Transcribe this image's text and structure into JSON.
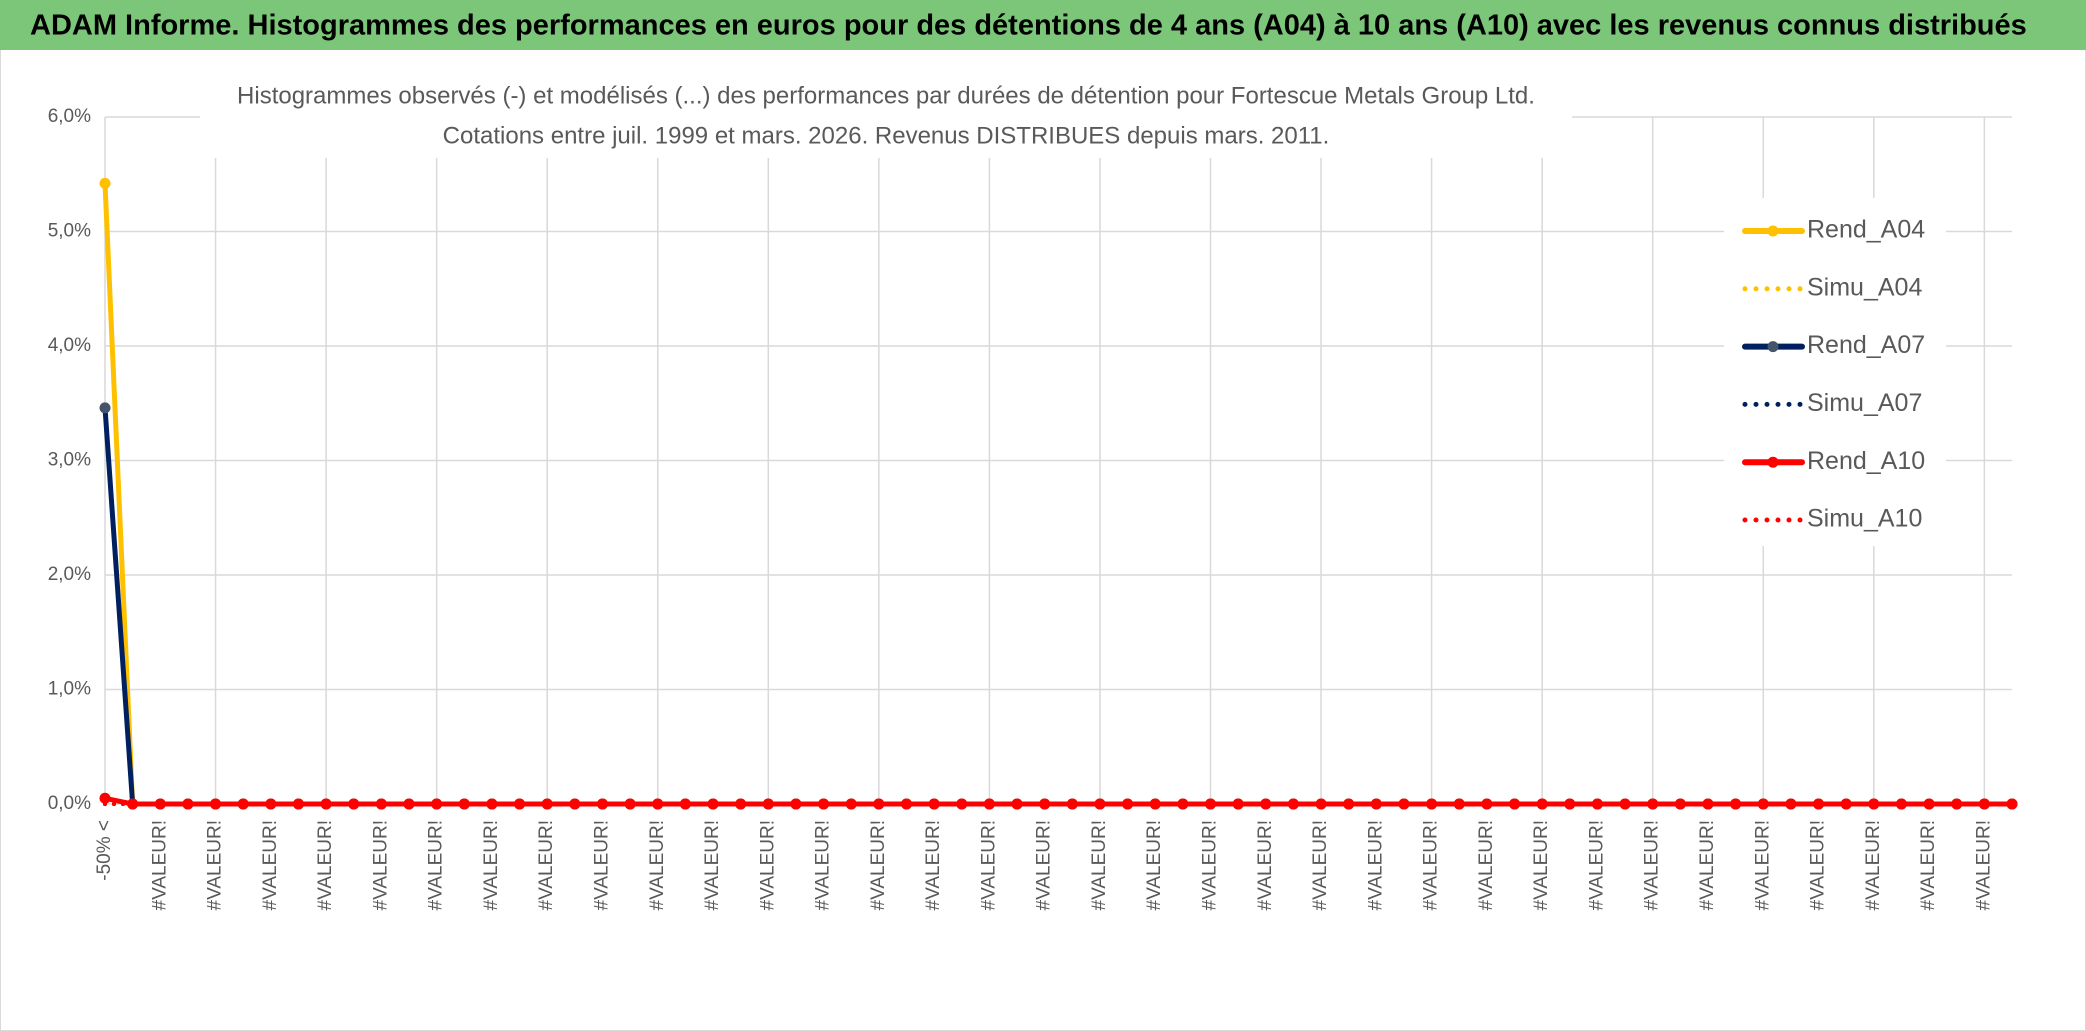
{
  "header": {
    "title": "ADAM Informe. Histogrammes des performances en euros pour des détentions de 4 ans (A04) à 10 ans (A10) avec les revenus connus distribués"
  },
  "chart_data": {
    "type": "line",
    "title": "Histogrammes observés (-) et modélisés (...) des performances par durées de détention pour Fortescue Metals Group Ltd.",
    "subtitle": "Cotations entre juil. 1999 et mars. 2026. Revenus DISTRIBUES depuis mars. 2011.",
    "categories": [
      "-50% <",
      null,
      "#VALEUR!",
      null,
      "#VALEUR!",
      null,
      "#VALEUR!",
      null,
      "#VALEUR!",
      null,
      "#VALEUR!",
      null,
      "#VALEUR!",
      null,
      "#VALEUR!",
      null,
      "#VALEUR!",
      null,
      "#VALEUR!",
      null,
      "#VALEUR!",
      null,
      "#VALEUR!",
      null,
      "#VALEUR!",
      null,
      "#VALEUR!",
      null,
      "#VALEUR!",
      null,
      "#VALEUR!",
      null,
      "#VALEUR!",
      null,
      "#VALEUR!",
      null,
      "#VALEUR!",
      null,
      "#VALEUR!",
      null,
      "#VALEUR!",
      null,
      "#VALEUR!",
      null,
      "#VALEUR!",
      null,
      "#VALEUR!",
      null,
      "#VALEUR!",
      null,
      "#VALEUR!",
      null,
      "#VALEUR!",
      null,
      "#VALEUR!",
      null,
      "#VALEUR!",
      null,
      "#VALEUR!",
      null,
      "#VALEUR!",
      null,
      "#VALEUR!",
      null,
      "#VALEUR!",
      null,
      "#VALEUR!",
      null,
      "#VALEUR!",
      null
    ],
    "series": [
      {
        "name": "Rend_A04",
        "color": "#FFC000",
        "style": "solid",
        "values": [
          5.42,
          0,
          0,
          0,
          0,
          0,
          0,
          0,
          0,
          0,
          0,
          0,
          0,
          0,
          0,
          0,
          0,
          0,
          0,
          0,
          0,
          0,
          0,
          0,
          0,
          0,
          0,
          0,
          0,
          0,
          0,
          0,
          0,
          0,
          0,
          0,
          0,
          0,
          0,
          0,
          0,
          0,
          0,
          0,
          0,
          0,
          0,
          0,
          0,
          0,
          0,
          0,
          0,
          0,
          0,
          0,
          0,
          0,
          0,
          0,
          0,
          0,
          0,
          0,
          0,
          0,
          0,
          0,
          0,
          0
        ]
      },
      {
        "name": "Simu_A04",
        "color": "#FFC000",
        "style": "dotted",
        "values": [
          0,
          0,
          0,
          0,
          0,
          0,
          0,
          0,
          0,
          0,
          0,
          0,
          0,
          0,
          0,
          0,
          0,
          0,
          0,
          0,
          0,
          0,
          0,
          0,
          0,
          0,
          0,
          0,
          0,
          0,
          0,
          0,
          0,
          0,
          0,
          0,
          0,
          0,
          0,
          0,
          0,
          0,
          0,
          0,
          0,
          0,
          0,
          0,
          0,
          0,
          0,
          0,
          0,
          0,
          0,
          0,
          0,
          0,
          0,
          0,
          0,
          0,
          0,
          0,
          0,
          0,
          0,
          0,
          0,
          0
        ]
      },
      {
        "name": "Rend_A07",
        "color": "#002060",
        "style": "solid",
        "values": [
          3.46,
          0,
          0,
          0,
          0,
          0,
          0,
          0,
          0,
          0,
          0,
          0,
          0,
          0,
          0,
          0,
          0,
          0,
          0,
          0,
          0,
          0,
          0,
          0,
          0,
          0,
          0,
          0,
          0,
          0,
          0,
          0,
          0,
          0,
          0,
          0,
          0,
          0,
          0,
          0,
          0,
          0,
          0,
          0,
          0,
          0,
          0,
          0,
          0,
          0,
          0,
          0,
          0,
          0,
          0,
          0,
          0,
          0,
          0,
          0,
          0,
          0,
          0,
          0,
          0,
          0,
          0,
          0,
          0,
          0
        ]
      },
      {
        "name": "Simu_A07",
        "color": "#002060",
        "style": "dotted",
        "values": [
          0,
          0,
          0,
          0,
          0,
          0,
          0,
          0,
          0,
          0,
          0,
          0,
          0,
          0,
          0,
          0,
          0,
          0,
          0,
          0,
          0,
          0,
          0,
          0,
          0,
          0,
          0,
          0,
          0,
          0,
          0,
          0,
          0,
          0,
          0,
          0,
          0,
          0,
          0,
          0,
          0,
          0,
          0,
          0,
          0,
          0,
          0,
          0,
          0,
          0,
          0,
          0,
          0,
          0,
          0,
          0,
          0,
          0,
          0,
          0,
          0,
          0,
          0,
          0,
          0,
          0,
          0,
          0,
          0,
          0
        ]
      },
      {
        "name": "Rend_A10",
        "color": "#FF0000",
        "style": "solid",
        "values": [
          0.05,
          0,
          0,
          0,
          0,
          0,
          0,
          0,
          0,
          0,
          0,
          0,
          0,
          0,
          0,
          0,
          0,
          0,
          0,
          0,
          0,
          0,
          0,
          0,
          0,
          0,
          0,
          0,
          0,
          0,
          0,
          0,
          0,
          0,
          0,
          0,
          0,
          0,
          0,
          0,
          0,
          0,
          0,
          0,
          0,
          0,
          0,
          0,
          0,
          0,
          0,
          0,
          0,
          0,
          0,
          0,
          0,
          0,
          0,
          0,
          0,
          0,
          0,
          0,
          0,
          0,
          0,
          0,
          0,
          0
        ]
      },
      {
        "name": "Simu_A10",
        "color": "#FF0000",
        "style": "dotted",
        "values": [
          0,
          0,
          0,
          0,
          0,
          0,
          0,
          0,
          0,
          0,
          0,
          0,
          0,
          0,
          0,
          0,
          0,
          0,
          0,
          0,
          0,
          0,
          0,
          0,
          0,
          0,
          0,
          0,
          0,
          0,
          0,
          0,
          0,
          0,
          0,
          0,
          0,
          0,
          0,
          0,
          0,
          0,
          0,
          0,
          0,
          0,
          0,
          0,
          0,
          0,
          0,
          0,
          0,
          0,
          0,
          0,
          0,
          0,
          0,
          0,
          0,
          0,
          0,
          0,
          0,
          0,
          0,
          0,
          0,
          0
        ]
      }
    ],
    "ylim": [
      0,
      6
    ],
    "yticks": [
      {
        "value": 0,
        "label": "0,0%"
      },
      {
        "value": 1,
        "label": "1,0%"
      },
      {
        "value": 2,
        "label": "2,0%"
      },
      {
        "value": 3,
        "label": "3,0%"
      },
      {
        "value": 4,
        "label": "4,0%"
      },
      {
        "value": 5,
        "label": "5,0%"
      },
      {
        "value": 6,
        "label": "6,0%"
      }
    ],
    "grid": true,
    "legend_position": "right"
  }
}
